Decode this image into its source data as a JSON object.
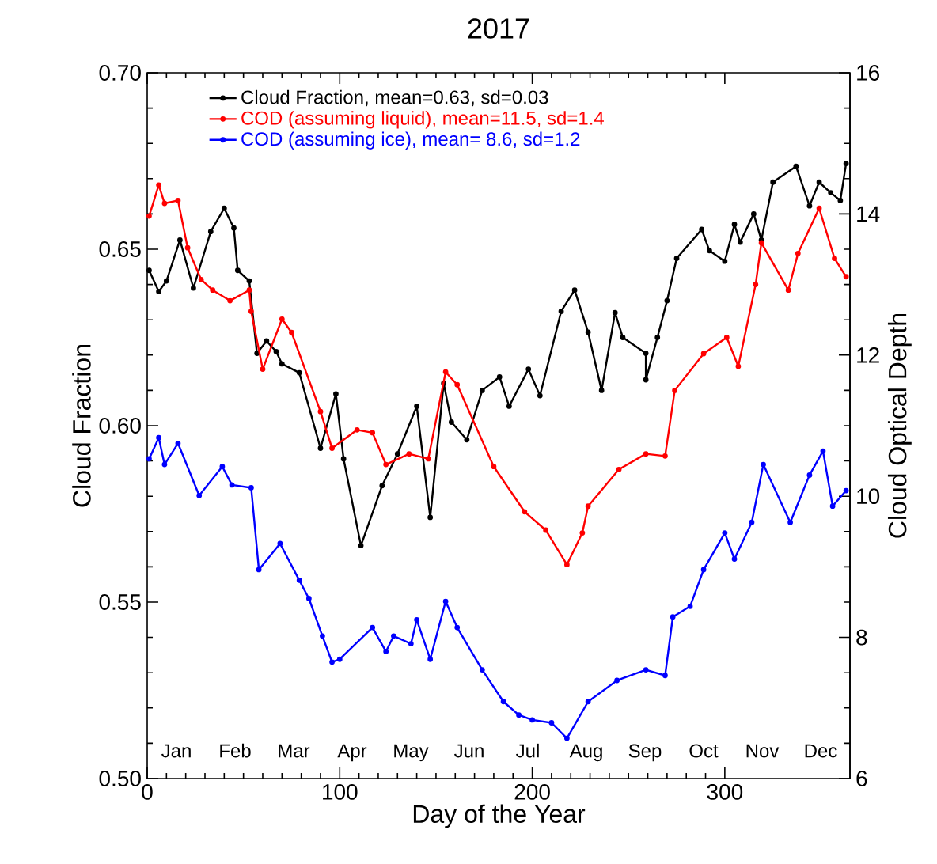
{
  "chart_data": {
    "type": "line",
    "title": "2017",
    "xlabel": "Day of the Year",
    "ylabel": "Cloud Fraction",
    "y2label": "Cloud Optical Depth",
    "xlim": [
      0,
      365
    ],
    "xticks": [
      0,
      100,
      200,
      300
    ],
    "ylim": [
      0.5,
      0.7
    ],
    "yticks": [
      {
        "value": 0.5,
        "label": "0.50"
      },
      0.55,
      {
        "value": 0.6,
        "label": "0.60"
      },
      0.65,
      {
        "value": 0.7,
        "label": "0.70"
      }
    ],
    "y2lim": [
      6,
      16
    ],
    "y2ticks": [
      6,
      8,
      10,
      12,
      14,
      16
    ],
    "marker": "circle",
    "legend": "top left",
    "series": [
      {
        "name": "Cloud Fraction, mean=0.63, sd=0.03",
        "color": "#000000",
        "x": [
          1,
          6,
          10,
          17,
          24,
          33,
          40,
          45,
          47,
          53,
          57,
          62,
          67,
          70,
          79,
          90,
          98,
          102,
          111,
          122,
          130,
          140,
          147,
          154,
          158,
          166,
          174,
          183,
          188,
          198,
          204,
          215,
          222,
          229,
          236,
          243,
          247,
          259,
          259,
          265,
          270,
          275,
          288,
          292,
          300,
          305,
          308,
          315,
          319,
          325,
          337,
          344,
          349,
          355,
          360,
          363
        ],
        "values": [
          0.644,
          0.638,
          0.641,
          0.6526,
          0.639,
          0.655,
          0.6616,
          0.656,
          0.644,
          0.641,
          0.6205,
          0.624,
          0.621,
          0.6175,
          0.615,
          0.5936,
          0.609,
          0.5906,
          0.566,
          0.583,
          0.592,
          0.6055,
          0.574,
          0.612,
          0.601,
          0.596,
          0.61,
          0.6138,
          0.6055,
          0.616,
          0.6085,
          0.6324,
          0.6384,
          0.6265,
          0.61,
          0.632,
          0.625,
          0.6205,
          0.613,
          0.625,
          0.6354,
          0.6474,
          0.6556,
          0.6496,
          0.6466,
          0.657,
          0.652,
          0.66,
          0.6526,
          0.669,
          0.6735,
          0.6623,
          0.669,
          0.666,
          0.6638,
          0.6743
        ]
      },
      {
        "name": "COD (assuming liquid), mean=11.5, sd=1.4",
        "color": "#ff0000",
        "axis": "y2",
        "x": [
          1,
          6,
          9,
          16,
          21,
          28,
          34,
          43,
          53,
          54,
          60,
          70,
          75,
          90,
          96,
          109,
          117,
          124,
          136,
          146,
          155,
          161,
          180,
          196,
          207,
          218,
          226,
          229,
          245,
          259,
          269,
          274,
          289,
          301,
          307,
          316,
          319,
          333,
          338,
          349,
          357,
          363
        ],
        "values": [
          13.97,
          14.41,
          14.15,
          14.19,
          13.52,
          13.07,
          12.92,
          12.77,
          12.92,
          12.62,
          11.8,
          12.51,
          12.32,
          11.2,
          10.68,
          10.94,
          10.9,
          10.45,
          10.6,
          10.53,
          11.76,
          11.58,
          10.42,
          9.78,
          9.52,
          9.03,
          9.48,
          9.86,
          10.38,
          10.6,
          10.57,
          11.5,
          12.02,
          12.25,
          11.84,
          13.0,
          13.59,
          12.92,
          13.44,
          14.08,
          13.37,
          13.11
        ]
      },
      {
        "name": "COD (assuming ice), mean= 8.6, sd=1.2",
        "color": "#0000ff",
        "axis": "y2",
        "x": [
          1,
          6,
          9,
          16,
          27,
          39,
          44,
          54,
          58,
          69,
          79,
          84,
          91,
          96,
          100,
          117,
          124,
          128,
          137,
          140,
          147,
          155,
          161,
          174,
          185,
          193,
          200,
          210,
          218,
          229,
          244,
          259,
          269,
          273,
          282,
          289,
          300,
          305,
          314,
          320,
          334,
          344,
          351,
          356,
          363
        ],
        "values": [
          10.53,
          10.83,
          10.45,
          10.75,
          10.01,
          10.42,
          10.16,
          10.12,
          8.96,
          9.33,
          8.81,
          8.55,
          8.02,
          7.65,
          7.69,
          8.14,
          7.8,
          8.02,
          7.91,
          8.25,
          7.69,
          8.51,
          8.14,
          7.54,
          7.09,
          6.9,
          6.83,
          6.79,
          6.57,
          7.09,
          7.39,
          7.54,
          7.46,
          8.29,
          8.44,
          8.96,
          9.48,
          9.11,
          9.63,
          10.45,
          9.63,
          10.3,
          10.64,
          9.86,
          10.08
        ]
      }
    ],
    "annotations": [
      "Jan",
      "Feb",
      "Mar",
      "Apr",
      "May",
      "Jun",
      "Jul",
      "Aug",
      "Sep",
      "Oct",
      "Nov",
      "Dec"
    ]
  }
}
